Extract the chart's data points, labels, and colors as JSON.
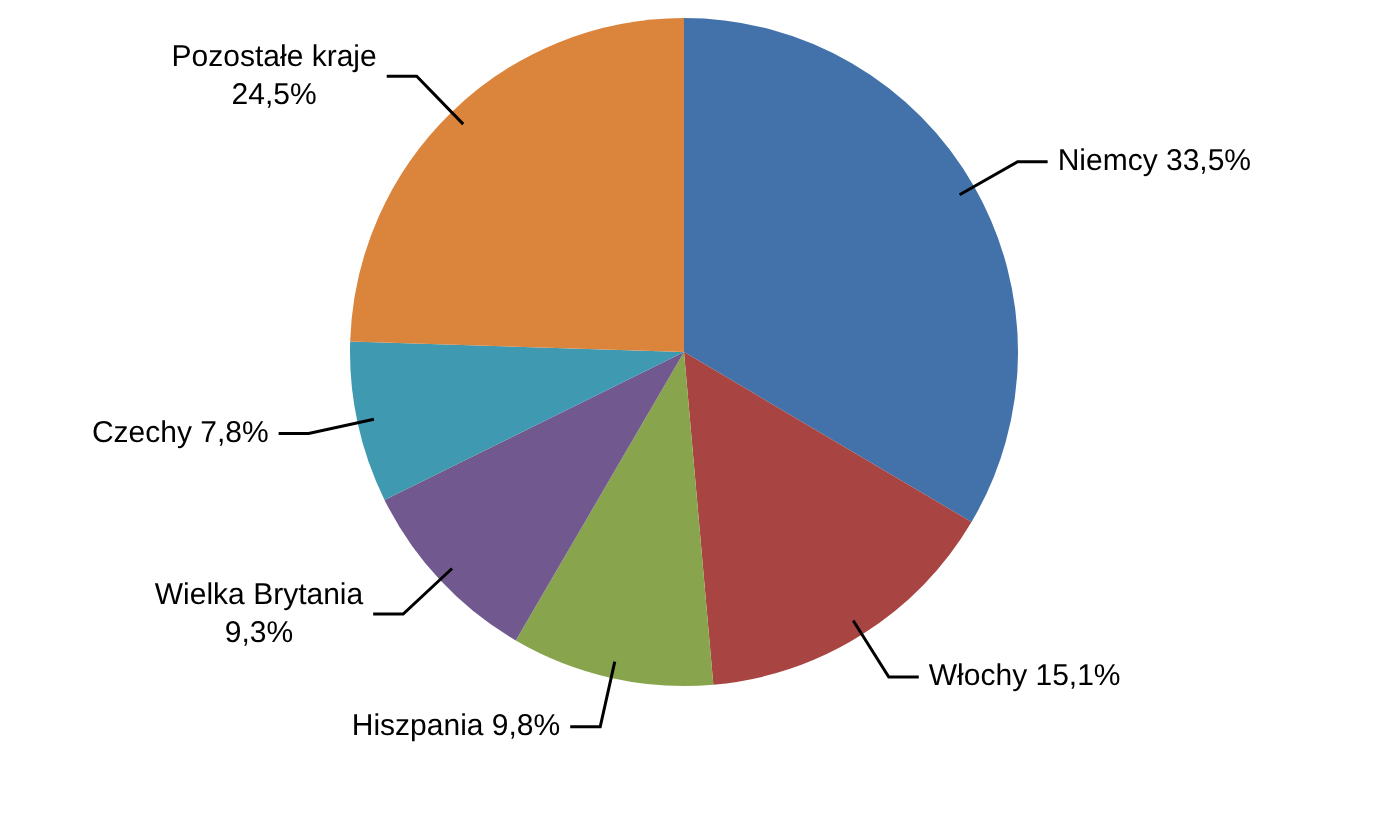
{
  "chart_data": {
    "type": "pie",
    "categories": [
      "Niemcy",
      "Włochy",
      "Hiszpania",
      "Wielka Brytania",
      "Czechy",
      "Pozostałe kraje"
    ],
    "values": [
      33.5,
      15.1,
      9.8,
      9.3,
      7.8,
      24.5
    ],
    "value_labels": [
      "33,5%",
      "15,1%",
      "9,8%",
      "9,3%",
      "7,8%",
      "24,5%"
    ],
    "colors": [
      "#4272a9",
      "#a84442",
      "#88a54d",
      "#71598f",
      "#3f99b0",
      "#da843c"
    ],
    "legend": false
  }
}
